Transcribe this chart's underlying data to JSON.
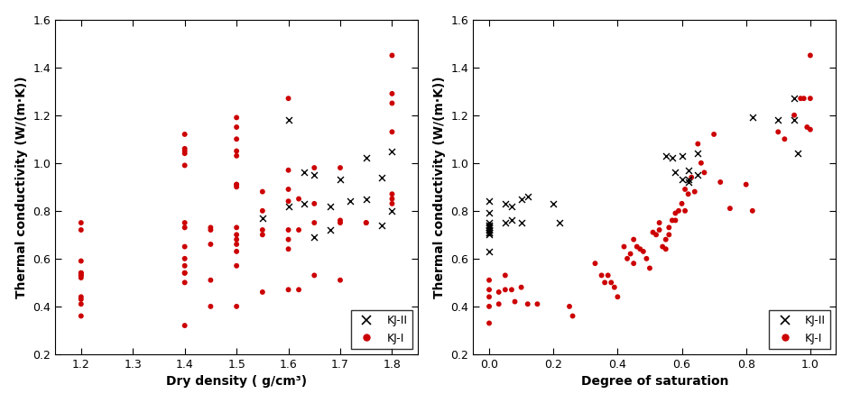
{
  "plot1": {
    "xlabel": "Dry density ( g/cm³)",
    "ylabel": "Thermal conductivity (W/(m·K))",
    "xlim": [
      1.15,
      1.85
    ],
    "ylim": [
      0.2,
      1.6
    ],
    "xticks": [
      1.2,
      1.3,
      1.4,
      1.5,
      1.6,
      1.7,
      1.8
    ],
    "yticks": [
      0.2,
      0.4,
      0.6,
      0.8,
      1.0,
      1.2,
      1.4,
      1.6
    ],
    "kj2_x": [
      1.55,
      1.6,
      1.6,
      1.63,
      1.63,
      1.65,
      1.65,
      1.68,
      1.68,
      1.7,
      1.72,
      1.75,
      1.75,
      1.78,
      1.78,
      1.8,
      1.8
    ],
    "kj2_y": [
      0.77,
      1.18,
      0.82,
      0.83,
      0.96,
      0.95,
      0.69,
      0.72,
      0.82,
      0.93,
      0.84,
      0.85,
      1.02,
      0.74,
      0.94,
      1.05,
      0.8
    ],
    "kj1_x": [
      1.2,
      1.2,
      1.2,
      1.2,
      1.2,
      1.2,
      1.2,
      1.2,
      1.2,
      1.2,
      1.2,
      1.2,
      1.4,
      1.4,
      1.4,
      1.4,
      1.4,
      1.4,
      1.4,
      1.4,
      1.4,
      1.4,
      1.4,
      1.4,
      1.4,
      1.4,
      1.45,
      1.45,
      1.45,
      1.45,
      1.45,
      1.5,
      1.5,
      1.5,
      1.5,
      1.5,
      1.5,
      1.5,
      1.5,
      1.5,
      1.5,
      1.5,
      1.5,
      1.5,
      1.5,
      1.5,
      1.55,
      1.55,
      1.55,
      1.55,
      1.55,
      1.6,
      1.6,
      1.6,
      1.6,
      1.6,
      1.6,
      1.6,
      1.6,
      1.62,
      1.62,
      1.62,
      1.65,
      1.65,
      1.65,
      1.65,
      1.7,
      1.7,
      1.7,
      1.7,
      1.75,
      1.75,
      1.8,
      1.8,
      1.8,
      1.8,
      1.8,
      1.8,
      1.8
    ],
    "kj1_y": [
      0.75,
      0.72,
      0.59,
      0.54,
      0.54,
      0.53,
      0.53,
      0.52,
      0.44,
      0.43,
      0.41,
      0.36,
      1.12,
      1.06,
      1.05,
      1.04,
      0.99,
      0.75,
      0.73,
      0.65,
      0.6,
      0.57,
      0.54,
      0.54,
      0.5,
      0.32,
      0.73,
      0.72,
      0.66,
      0.51,
      0.4,
      1.19,
      1.15,
      1.1,
      1.05,
      1.03,
      0.91,
      0.91,
      0.9,
      0.73,
      0.7,
      0.68,
      0.66,
      0.63,
      0.57,
      0.4,
      0.88,
      0.8,
      0.72,
      0.7,
      0.46,
      1.27,
      0.97,
      0.89,
      0.84,
      0.72,
      0.68,
      0.64,
      0.47,
      0.85,
      0.72,
      0.47,
      0.98,
      0.83,
      0.75,
      0.53,
      0.98,
      0.76,
      0.75,
      0.51,
      0.75,
      0.75,
      1.45,
      1.29,
      1.25,
      1.13,
      0.87,
      0.85,
      0.83
    ]
  },
  "plot2": {
    "xlabel": "Degree of saturation",
    "ylabel": "Thermal conductivity (W/(m·K))",
    "xlim": [
      -0.05,
      1.08
    ],
    "ylim": [
      0.2,
      1.6
    ],
    "xticks": [
      0.0,
      0.2,
      0.4,
      0.6,
      0.8,
      1.0
    ],
    "yticks": [
      0.2,
      0.4,
      0.6,
      0.8,
      1.0,
      1.2,
      1.4,
      1.6
    ],
    "kj2_x": [
      0.0,
      0.0,
      0.0,
      0.0,
      0.0,
      0.0,
      0.0,
      0.0,
      0.0,
      0.0,
      0.0,
      0.0,
      0.0,
      0.05,
      0.05,
      0.07,
      0.07,
      0.1,
      0.1,
      0.12,
      0.2,
      0.22,
      0.55,
      0.57,
      0.58,
      0.6,
      0.6,
      0.62,
      0.62,
      0.62,
      0.65,
      0.65,
      0.82,
      0.9,
      0.95,
      0.95,
      0.96
    ],
    "kj2_y": [
      0.84,
      0.79,
      0.75,
      0.74,
      0.74,
      0.73,
      0.73,
      0.72,
      0.72,
      0.71,
      0.71,
      0.7,
      0.63,
      0.83,
      0.75,
      0.82,
      0.76,
      0.85,
      0.75,
      0.86,
      0.83,
      0.75,
      1.03,
      1.02,
      0.96,
      1.03,
      0.93,
      0.97,
      0.93,
      0.92,
      1.04,
      0.95,
      1.19,
      1.18,
      1.27,
      1.18,
      1.04
    ],
    "kj1_x": [
      0.0,
      0.0,
      0.0,
      0.0,
      0.0,
      0.03,
      0.03,
      0.05,
      0.05,
      0.07,
      0.08,
      0.1,
      0.12,
      0.15,
      0.25,
      0.26,
      0.33,
      0.35,
      0.36,
      0.37,
      0.38,
      0.39,
      0.4,
      0.42,
      0.43,
      0.44,
      0.45,
      0.45,
      0.46,
      0.47,
      0.48,
      0.49,
      0.5,
      0.51,
      0.52,
      0.53,
      0.53,
      0.54,
      0.55,
      0.55,
      0.56,
      0.56,
      0.57,
      0.58,
      0.58,
      0.59,
      0.6,
      0.61,
      0.61,
      0.62,
      0.63,
      0.64,
      0.65,
      0.66,
      0.67,
      0.7,
      0.72,
      0.75,
      0.8,
      0.82,
      0.9,
      0.92,
      0.95,
      0.97,
      0.98,
      0.99,
      1.0,
      1.0,
      1.0
    ],
    "kj1_y": [
      0.51,
      0.47,
      0.44,
      0.4,
      0.33,
      0.46,
      0.41,
      0.53,
      0.47,
      0.47,
      0.42,
      0.48,
      0.41,
      0.41,
      0.4,
      0.36,
      0.58,
      0.53,
      0.5,
      0.53,
      0.5,
      0.48,
      0.44,
      0.65,
      0.6,
      0.62,
      0.68,
      0.58,
      0.65,
      0.64,
      0.63,
      0.6,
      0.56,
      0.71,
      0.7,
      0.72,
      0.75,
      0.65,
      0.68,
      0.64,
      0.73,
      0.7,
      0.76,
      0.76,
      0.79,
      0.8,
      0.83,
      0.8,
      0.89,
      0.87,
      0.94,
      0.88,
      1.08,
      1.0,
      0.96,
      1.12,
      0.92,
      0.81,
      0.91,
      0.8,
      1.13,
      1.1,
      1.2,
      1.27,
      1.27,
      1.15,
      1.45,
      1.27,
      1.14
    ]
  },
  "kj2_color": "#000000",
  "kj1_color": "#cc0000",
  "kj2_marker": "x",
  "kj1_marker": "o",
  "kj1_markersize": 18,
  "kj2_markersize": 25,
  "legend_fontsize": 9,
  "label_color": "#000000",
  "tick_color": "#000000",
  "spine_color": "#000000",
  "axis_label_fontsize": 10,
  "tick_labelsize": 9
}
